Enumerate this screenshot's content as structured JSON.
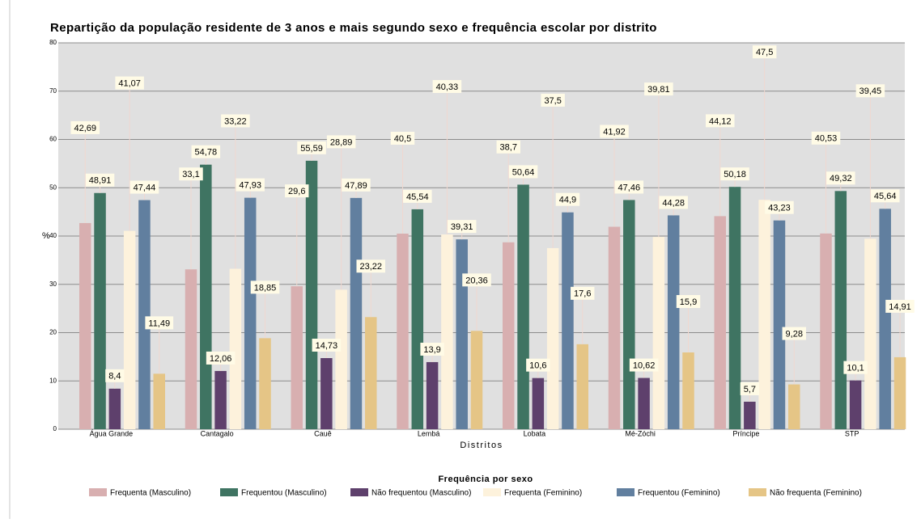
{
  "chart_data": {
    "type": "bar",
    "title": "Repartição da população residente de 3 anos e mais segundo sexo e frequência escolar por distrito",
    "ylabel": "%",
    "xlabel": "Distritos",
    "legend_title": "Frequência por sexo",
    "categories": [
      "Água Grande",
      "Cantagalo",
      "Cauê",
      "Lembá",
      "Lobata",
      "Mé-Zóchi",
      "Príncipe",
      "STP"
    ],
    "ylim": [
      0,
      80
    ],
    "yticks": [
      0,
      10,
      20,
      30,
      40,
      50,
      60,
      70,
      80
    ],
    "grid": true,
    "legend": "bottom",
    "series": [
      {
        "name": "Frequenta (Masculino)",
        "color": "#d8afb0",
        "values": [
          42.69,
          33.1,
          29.6,
          40.5,
          38.7,
          41.92,
          44.12,
          40.53
        ],
        "value_labels": [
          "42,69",
          "33,1",
          "29,6",
          "40,5",
          "38,7",
          "41,92",
          "44,12",
          "40,53"
        ]
      },
      {
        "name": "Frequentou (Masculino)",
        "color": "#3f7462",
        "values": [
          48.91,
          54.78,
          55.59,
          45.54,
          50.64,
          47.46,
          50.18,
          49.32
        ],
        "value_labels": [
          "48,91",
          "54,78",
          "55,59",
          "45,54",
          "50,64",
          "47,46",
          "50,18",
          "49,32"
        ]
      },
      {
        "name": "Não frequentou (Masculino)",
        "color": "#5e406c",
        "values": [
          8.4,
          12.06,
          14.73,
          13.9,
          10.6,
          10.62,
          5.7,
          10.1
        ],
        "value_labels": [
          "8,4",
          "12,06",
          "14,73",
          "13,9",
          "10,6",
          "10,62",
          "5,7",
          "10,1"
        ]
      },
      {
        "name": "Frequenta (Feminino)",
        "color": "#fdf2dc",
        "values": [
          41.07,
          33.22,
          28.89,
          40.33,
          37.5,
          39.81,
          47.5,
          39.45
        ],
        "value_labels": [
          "41,07",
          "33,22",
          "28,89",
          "40,33",
          "37,5",
          "39,81",
          "47,5",
          "39,45"
        ]
      },
      {
        "name": "Frequentou (Feminino)",
        "color": "#617f9f",
        "values": [
          47.44,
          47.93,
          47.89,
          39.31,
          44.9,
          44.28,
          43.23,
          45.64
        ],
        "value_labels": [
          "47,44",
          "47,93",
          "47,89",
          "39,31",
          "44,9",
          "44,28",
          "43,23",
          "45,64"
        ]
      },
      {
        "name": "Não frequenta (Feminino)",
        "color": "#e5c586",
        "values": [
          11.49,
          18.85,
          23.22,
          20.36,
          17.6,
          15.9,
          9.28,
          14.91
        ],
        "value_labels": [
          "11,49",
          "18,85",
          "23,22",
          "20,36",
          "17,6",
          "15,9",
          "9,28",
          "14,91"
        ]
      }
    ]
  }
}
